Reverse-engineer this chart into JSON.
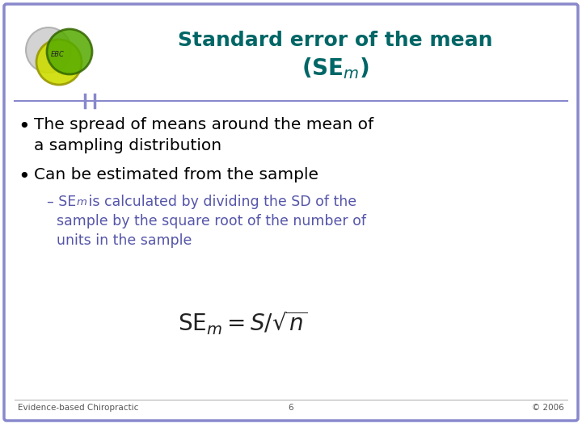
{
  "title_line1": "Standard error of the mean",
  "title_line2": "(SE",
  "title_subscript": "m",
  "title_line2_end": ")",
  "title_color": "#006666",
  "background_color": "#ffffff",
  "border_color": "#7777bb",
  "bullet1_line1": "The spread of means around the mean of",
  "bullet1_line2": "a sampling distribution",
  "bullet2": "Can be estimated from the sample",
  "sub_bullet_text1": " is calculated by dividing the SD of the",
  "sub_bullet_text2": "sample by the square root of the number of",
  "sub_bullet_text3": "units in the sample",
  "footer_left": "Evidence-based Chiropractic",
  "footer_center": "6",
  "footer_right": "© 2006",
  "sub_bullet_color": "#5555aa",
  "bullet_color": "#000000",
  "footer_color": "#555555",
  "border_color2": "#8888cc",
  "separator_color": "#8888cc",
  "logo_gray_fill": "#cccccc",
  "logo_gray_edge": "#aaaaaa",
  "logo_yellow_fill": "#ccdd00",
  "logo_yellow_edge": "#999900",
  "logo_green_fill": "#55aa00",
  "logo_green_edge": "#336600"
}
